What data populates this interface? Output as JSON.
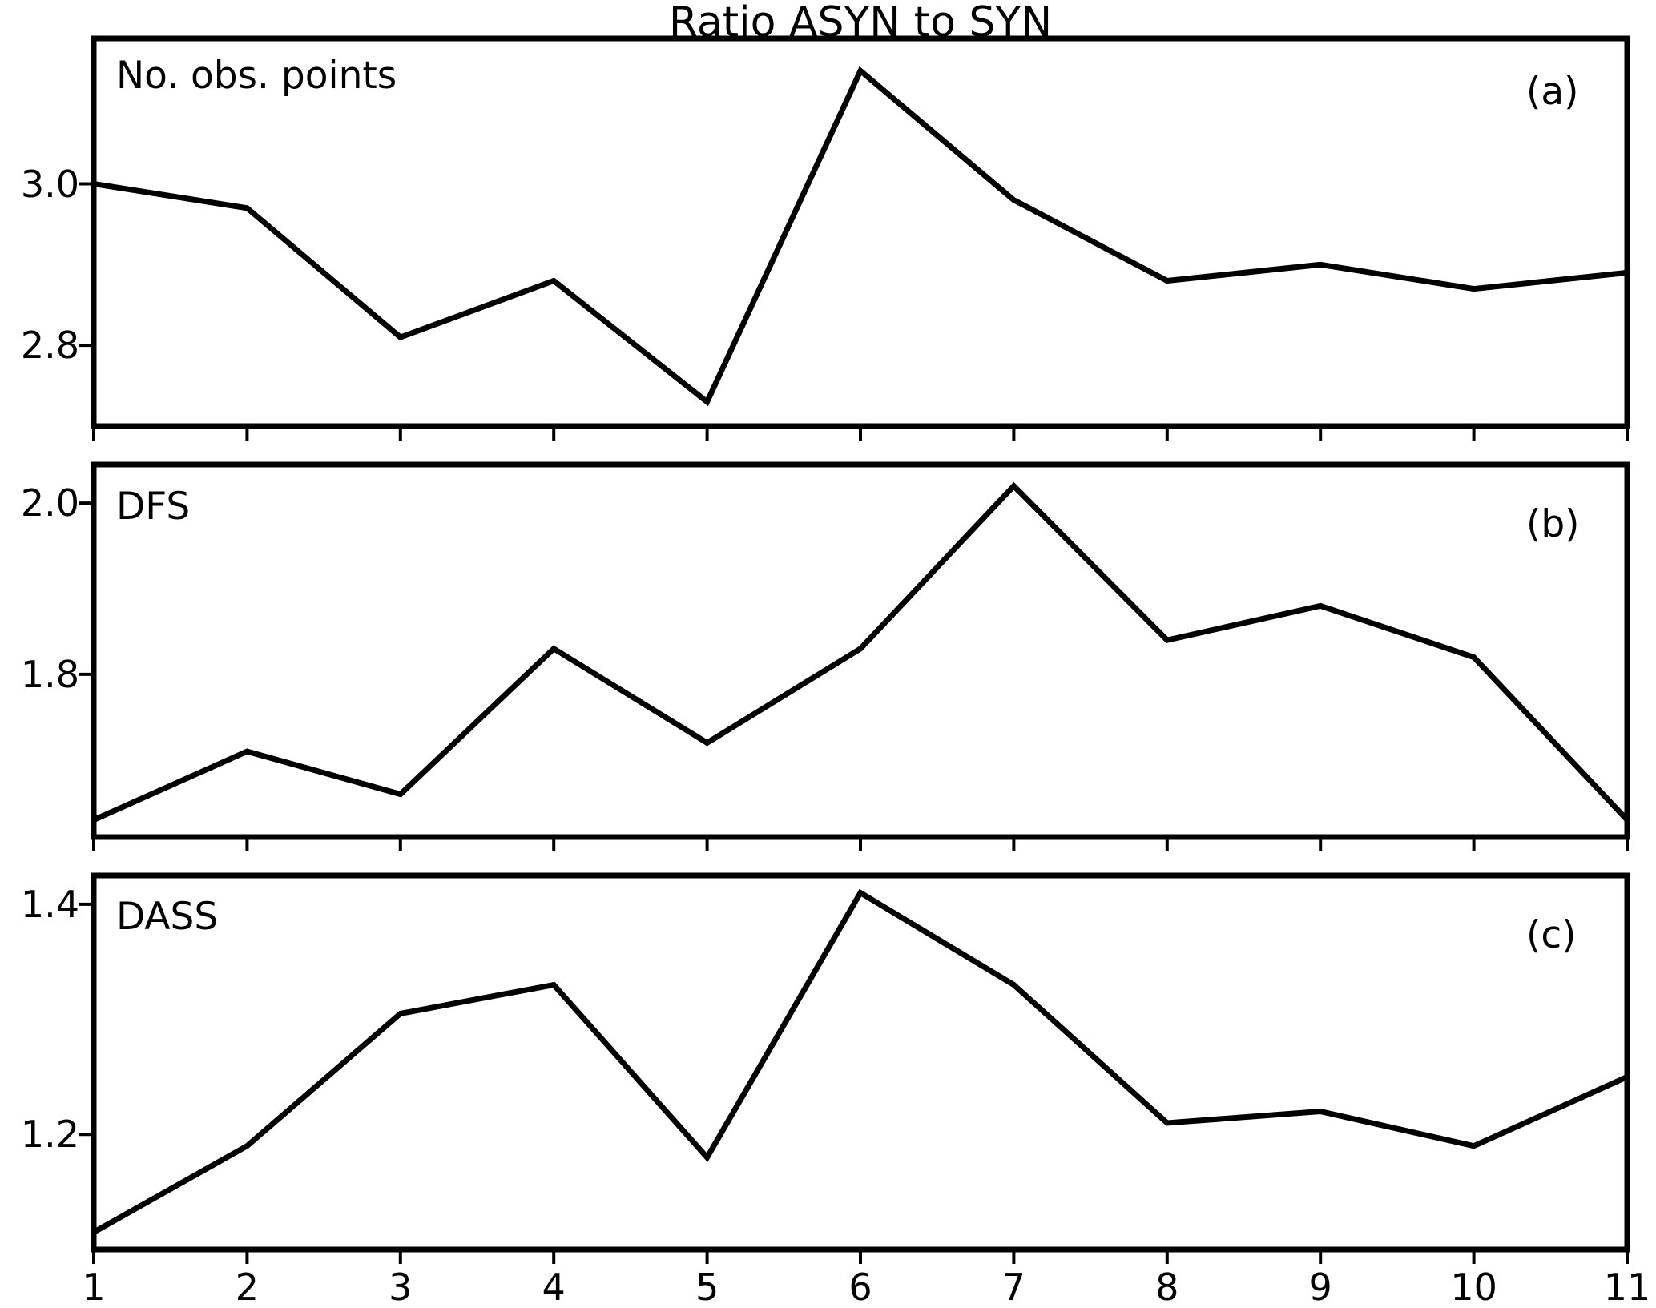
{
  "title": "Ratio ASYN to SYN",
  "chart_data": [
    {
      "type": "line",
      "panel_label": "(a)",
      "series_label": "No. obs. points",
      "x": [
        1,
        2,
        3,
        4,
        5,
        6,
        7,
        8,
        9,
        10,
        11
      ],
      "values": [
        3.0,
        2.97,
        2.81,
        2.88,
        2.73,
        3.14,
        2.98,
        2.88,
        2.9,
        2.87,
        2.89
      ],
      "xlim": [
        1,
        11
      ],
      "ylim": [
        2.7,
        3.18
      ],
      "yticks": [
        {
          "value": 3.0,
          "label": "3.0"
        },
        {
          "value": 2.8,
          "label": "2.8"
        }
      ]
    },
    {
      "type": "line",
      "panel_label": "(b)",
      "series_label": "DFS",
      "x": [
        1,
        2,
        3,
        4,
        5,
        6,
        7,
        8,
        9,
        10,
        11
      ],
      "values": [
        1.63,
        1.71,
        1.66,
        1.83,
        1.72,
        1.83,
        2.02,
        1.84,
        1.88,
        1.82,
        1.63
      ],
      "xlim": [
        1,
        11
      ],
      "ylim": [
        1.61,
        2.045
      ],
      "yticks": [
        {
          "value": 2.0,
          "label": "2.0"
        },
        {
          "value": 1.8,
          "label": "1.8"
        }
      ]
    },
    {
      "type": "line",
      "panel_label": "(c)",
      "series_label": "DASS",
      "x": [
        1,
        2,
        3,
        4,
        5,
        6,
        7,
        8,
        9,
        10,
        11
      ],
      "values": [
        1.115,
        1.19,
        1.305,
        1.33,
        1.18,
        1.41,
        1.33,
        1.21,
        1.22,
        1.19,
        1.25
      ],
      "xlim": [
        1,
        11
      ],
      "ylim": [
        1.1,
        1.425
      ],
      "yticks": [
        {
          "value": 1.4,
          "label": "1.4"
        },
        {
          "value": 1.2,
          "label": "1.2"
        }
      ]
    }
  ],
  "x_axis": {
    "tick_labels": [
      "1",
      "2",
      "3",
      "4",
      "5",
      "6",
      "7",
      "8",
      "9",
      "10",
      "11"
    ]
  },
  "styles": {
    "line_color": "#000000",
    "axis_color": "#000000",
    "background": "#ffffff"
  }
}
